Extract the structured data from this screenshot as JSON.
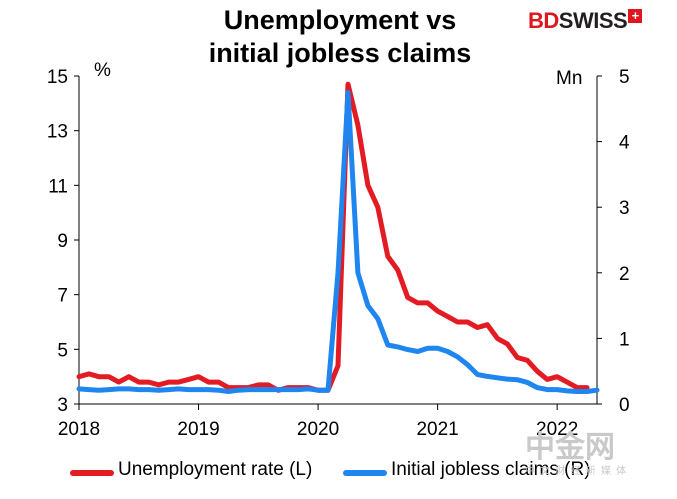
{
  "title_line1": "Unemployment vs",
  "title_line2": "initial jobless claims",
  "logo": {
    "bd": "BD",
    "swiss": "SWISS",
    "plus": "+"
  },
  "left_unit": "%",
  "right_unit": "Mn",
  "watermark": {
    "big": "中金网",
    "small": "中 文 财 经 新 媒 体"
  },
  "colors": {
    "unemployment": "#e31b23",
    "claims": "#1f86f0",
    "axis": "#000000"
  },
  "chart_data": {
    "type": "line",
    "title": "Unemployment vs initial jobless claims",
    "x_ticks": [
      "2018",
      "2019",
      "2020",
      "2021",
      "2022"
    ],
    "xlim": [
      "2018-01",
      "2022-05"
    ],
    "y_left": {
      "ticks": [
        "3",
        "5",
        "7",
        "9",
        "11",
        "13",
        "15"
      ],
      "range": [
        3,
        15
      ],
      "unit": "%"
    },
    "y_right": {
      "ticks": [
        "0",
        "1",
        "2",
        "3",
        "4",
        "5"
      ],
      "range": [
        0,
        5
      ],
      "unit": "Mn"
    },
    "legend_position": "bottom",
    "series": [
      {
        "name": "Unemployment rate (L)",
        "axis": "left",
        "color": "#e31b23",
        "points": [
          [
            "2018-01",
            4.0
          ],
          [
            "2018-02",
            4.1
          ],
          [
            "2018-03",
            4.0
          ],
          [
            "2018-04",
            4.0
          ],
          [
            "2018-05",
            3.8
          ],
          [
            "2018-06",
            4.0
          ],
          [
            "2018-07",
            3.8
          ],
          [
            "2018-08",
            3.8
          ],
          [
            "2018-09",
            3.7
          ],
          [
            "2018-10",
            3.8
          ],
          [
            "2018-11",
            3.8
          ],
          [
            "2018-12",
            3.9
          ],
          [
            "2019-01",
            4.0
          ],
          [
            "2019-02",
            3.8
          ],
          [
            "2019-03",
            3.8
          ],
          [
            "2019-04",
            3.6
          ],
          [
            "2019-05",
            3.6
          ],
          [
            "2019-06",
            3.6
          ],
          [
            "2019-07",
            3.7
          ],
          [
            "2019-08",
            3.7
          ],
          [
            "2019-09",
            3.5
          ],
          [
            "2019-10",
            3.6
          ],
          [
            "2019-11",
            3.6
          ],
          [
            "2019-12",
            3.6
          ],
          [
            "2020-01",
            3.5
          ],
          [
            "2020-02",
            3.5
          ],
          [
            "2020-03",
            4.4
          ],
          [
            "2020-04",
            14.7
          ],
          [
            "2020-05",
            13.2
          ],
          [
            "2020-06",
            11.0
          ],
          [
            "2020-07",
            10.2
          ],
          [
            "2020-08",
            8.4
          ],
          [
            "2020-09",
            7.9
          ],
          [
            "2020-10",
            6.9
          ],
          [
            "2020-11",
            6.7
          ],
          [
            "2020-12",
            6.7
          ],
          [
            "2021-01",
            6.4
          ],
          [
            "2021-02",
            6.2
          ],
          [
            "2021-03",
            6.0
          ],
          [
            "2021-04",
            6.0
          ],
          [
            "2021-05",
            5.8
          ],
          [
            "2021-06",
            5.9
          ],
          [
            "2021-07",
            5.4
          ],
          [
            "2021-08",
            5.2
          ],
          [
            "2021-09",
            4.7
          ],
          [
            "2021-10",
            4.6
          ],
          [
            "2021-11",
            4.2
          ],
          [
            "2021-12",
            3.9
          ],
          [
            "2022-01",
            4.0
          ],
          [
            "2022-02",
            3.8
          ],
          [
            "2022-03",
            3.6
          ],
          [
            "2022-04",
            3.6
          ]
        ]
      },
      {
        "name": "Initial jobless claims (R)",
        "axis": "right",
        "color": "#1f86f0",
        "points": [
          [
            "2018-01",
            0.23
          ],
          [
            "2018-02",
            0.22
          ],
          [
            "2018-03",
            0.21
          ],
          [
            "2018-04",
            0.22
          ],
          [
            "2018-05",
            0.23
          ],
          [
            "2018-06",
            0.23
          ],
          [
            "2018-07",
            0.22
          ],
          [
            "2018-08",
            0.22
          ],
          [
            "2018-09",
            0.21
          ],
          [
            "2018-10",
            0.22
          ],
          [
            "2018-11",
            0.23
          ],
          [
            "2018-12",
            0.22
          ],
          [
            "2019-01",
            0.22
          ],
          [
            "2019-02",
            0.22
          ],
          [
            "2019-03",
            0.21
          ],
          [
            "2019-04",
            0.19
          ],
          [
            "2019-05",
            0.21
          ],
          [
            "2019-06",
            0.22
          ],
          [
            "2019-07",
            0.22
          ],
          [
            "2019-08",
            0.22
          ],
          [
            "2019-09",
            0.22
          ],
          [
            "2019-10",
            0.22
          ],
          [
            "2019-11",
            0.22
          ],
          [
            "2019-12",
            0.23
          ],
          [
            "2020-01",
            0.21
          ],
          [
            "2020-02",
            0.21
          ],
          [
            "2020-03",
            2.0
          ],
          [
            "2020-04",
            4.75
          ],
          [
            "2020-05",
            2.0
          ],
          [
            "2020-06",
            1.5
          ],
          [
            "2020-07",
            1.3
          ],
          [
            "2020-08",
            0.9
          ],
          [
            "2020-09",
            0.87
          ],
          [
            "2020-10",
            0.83
          ],
          [
            "2020-11",
            0.8
          ],
          [
            "2020-12",
            0.85
          ],
          [
            "2021-01",
            0.85
          ],
          [
            "2021-02",
            0.8
          ],
          [
            "2021-03",
            0.72
          ],
          [
            "2021-04",
            0.6
          ],
          [
            "2021-05",
            0.45
          ],
          [
            "2021-06",
            0.42
          ],
          [
            "2021-07",
            0.4
          ],
          [
            "2021-08",
            0.38
          ],
          [
            "2021-09",
            0.37
          ],
          [
            "2021-10",
            0.33
          ],
          [
            "2021-11",
            0.25
          ],
          [
            "2021-12",
            0.22
          ],
          [
            "2022-01",
            0.22
          ],
          [
            "2022-02",
            0.2
          ],
          [
            "2022-03",
            0.19
          ],
          [
            "2022-04",
            0.19
          ],
          [
            "2022-05",
            0.21
          ]
        ]
      }
    ]
  }
}
